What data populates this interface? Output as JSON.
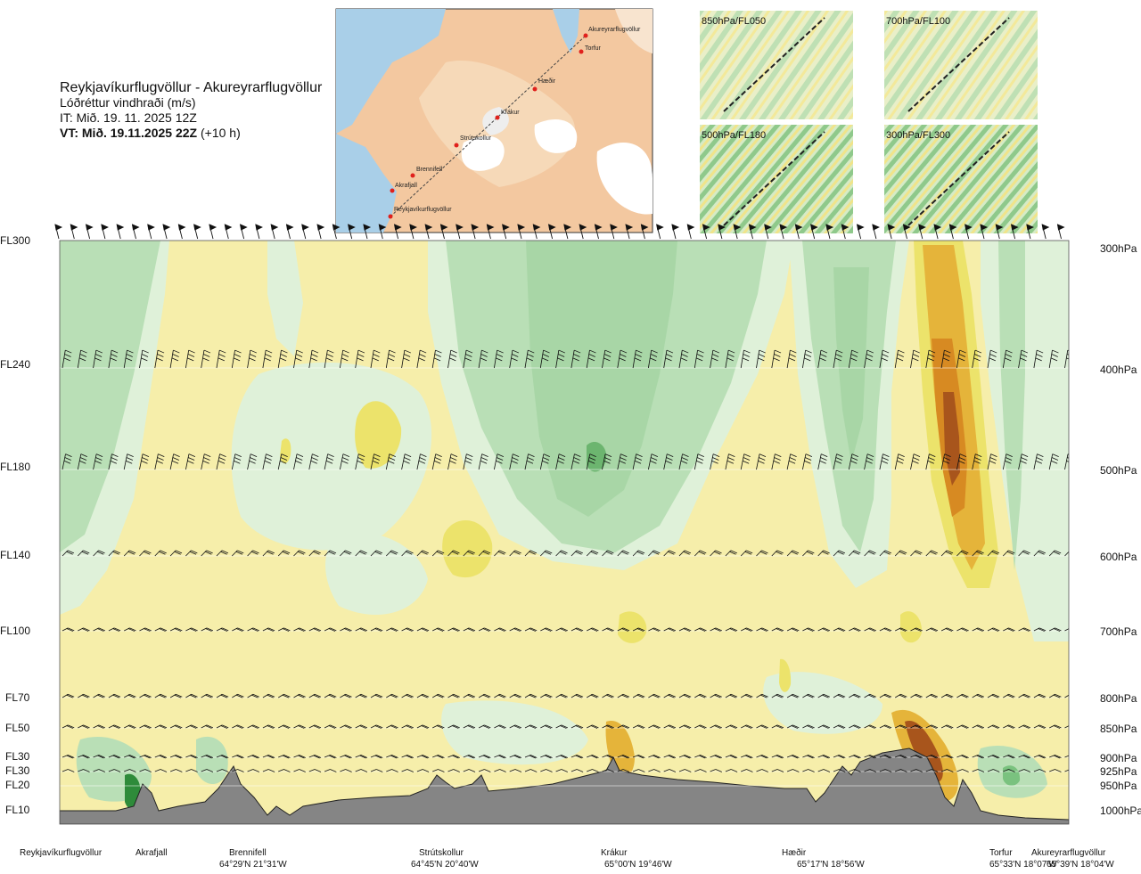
{
  "header": {
    "route": "Reykjavíkurflugvöllur - Akureyrarflugvöllur",
    "variable": "Lóðréttur vindhraði (m/s)",
    "it": "IT: Mið. 19. 11. 2025 12Z",
    "vt_bold": "VT: Mið. 19.11.2025 22Z",
    "vt_offset": "(+10 h)"
  },
  "insets": [
    "850hPa/FL050",
    "700hPa/FL100",
    "500hPa/FL180",
    "300hPa/FL300"
  ],
  "map_locations": [
    "Akureyrarflugvöllur",
    "Torfur",
    "Hæðir",
    "Krákur",
    "Strútskollur",
    "Brennifell",
    "Akrafjall",
    "Reykjavíkurflugvöllur"
  ],
  "chart_data": {
    "type": "heatmap",
    "x_axis": "route distance (Reykjavíkurflugvöllur → Akureyrarflugvöllur)",
    "y_levels": [
      {
        "fl": "FL300",
        "hpa": "300hPa"
      },
      {
        "fl": "FL240",
        "hpa": "400hPa"
      },
      {
        "fl": "FL180",
        "hpa": "500hPa"
      },
      {
        "fl": "FL140",
        "hpa": "600hPa"
      },
      {
        "fl": "FL100",
        "hpa": "700hPa"
      },
      {
        "fl": "FL70",
        "hpa": "800hPa"
      },
      {
        "fl": "FL50",
        "hpa": "850hPa"
      },
      {
        "fl": "FL30",
        "hpa": "900hPa"
      },
      {
        "fl": "FL30",
        "hpa": "925hPa"
      },
      {
        "fl": "FL20",
        "hpa": "950hPa"
      },
      {
        "fl": "FL10",
        "hpa": "1000hPa"
      }
    ],
    "waypoints": [
      {
        "name": "Reykjavíkurflugvöllur",
        "coord": ""
      },
      {
        "name": "Akrafjall",
        "coord": ""
      },
      {
        "name": "Brennifell",
        "coord": "64°29'N 21°31'W"
      },
      {
        "name": "Strútskollur",
        "coord": "64°45'N 20°40'W"
      },
      {
        "name": "Krákur",
        "coord": "65°00'N 19°46'W"
      },
      {
        "name": "Hæðir",
        "coord": "65°17'N 18°56'W"
      },
      {
        "name": "Torfur",
        "coord": "65°33'N 18°07'W"
      },
      {
        "name": "Akureyrarflugvöllur",
        "coord": "65°39'N 18°04'W"
      }
    ],
    "colors": {
      "strong_down": "#2e8b3a",
      "mod_down": "#7ac27f",
      "weak_down": "#b9dfb6",
      "very_weak_down": "#dff1d9",
      "near_zero": "#fbfbea",
      "weak_up": "#f6eeaa",
      "mod_up": "#ece36b",
      "strong_up": "#e5b43a",
      "very_strong_up": "#d78a22",
      "extreme_up": "#a8551c",
      "terrain": "#858585"
    }
  }
}
